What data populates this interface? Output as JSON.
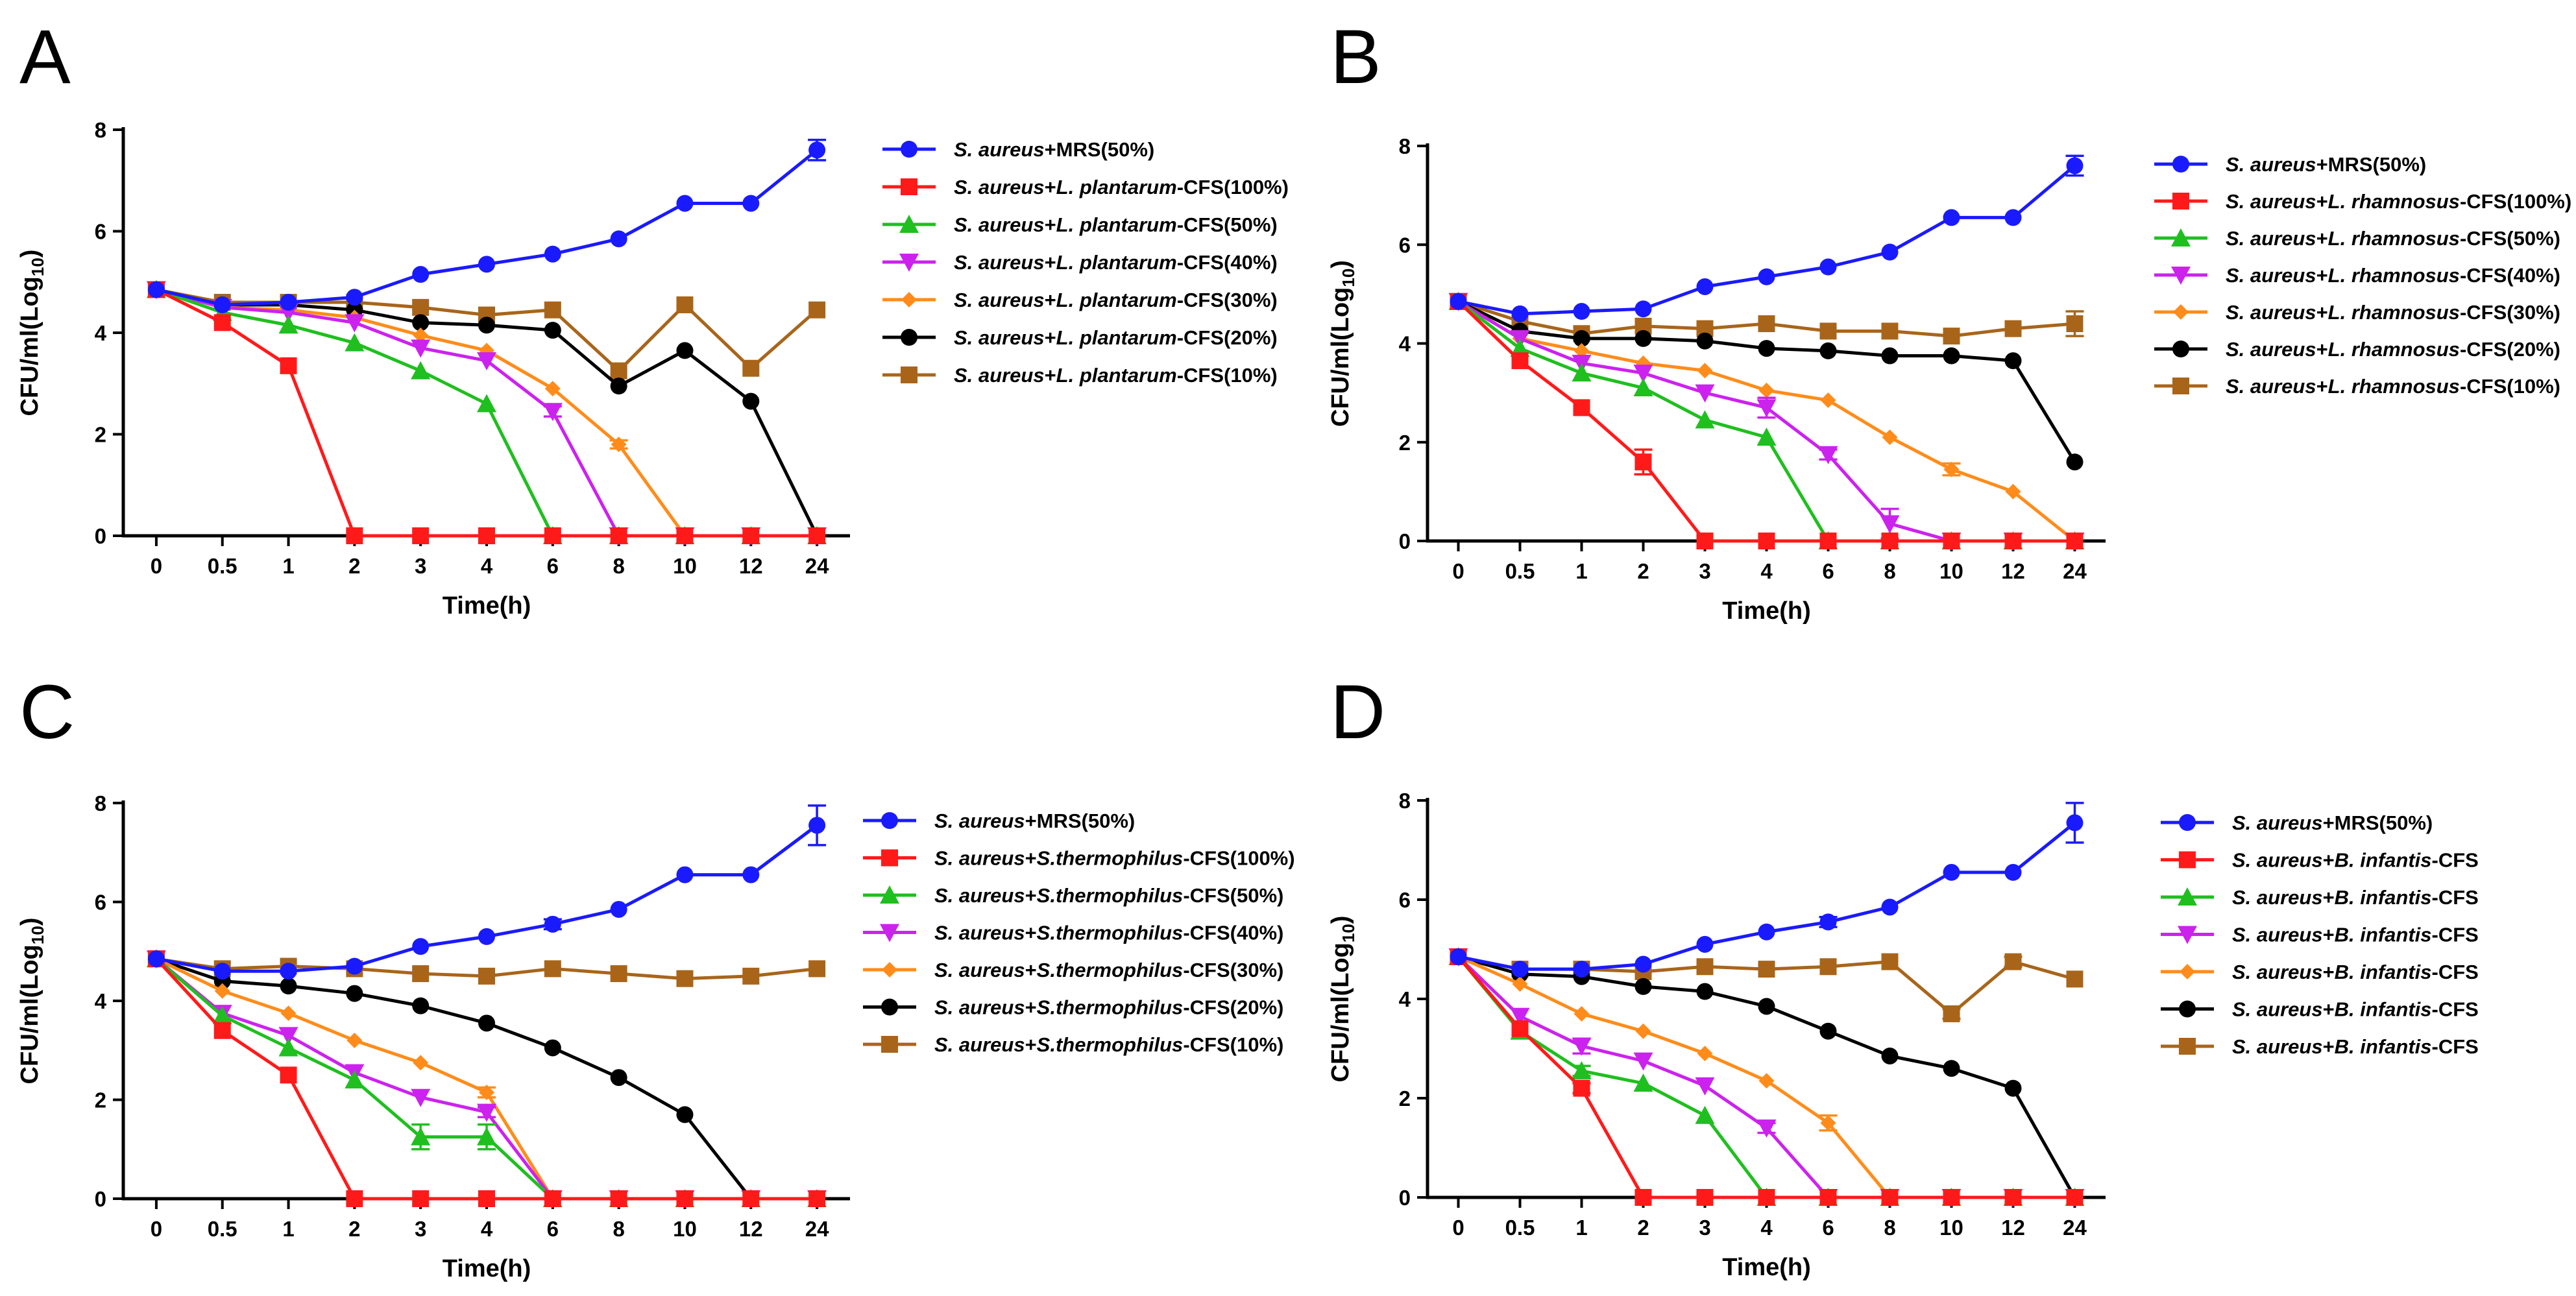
{
  "figure": {
    "colors": {
      "mrs": "#1a1aff",
      "c100": "#ff1a1a",
      "c50": "#1fbf1f",
      "c40": "#cc22ee",
      "c30": "#ff8c1a",
      "c20": "#000000",
      "c10": "#a8651a"
    },
    "markers": [
      "circle",
      "square",
      "triangle-up",
      "triangle-down",
      "diamond",
      "circle",
      "square"
    ]
  },
  "chart_data": [
    {
      "panel": "A",
      "type": "line",
      "ylabel_main": "CFU/ml(Log",
      "ylabel_sub": "10",
      "ylabel_end": ")",
      "xlabel": "Time(h)",
      "categories": [
        "0",
        "0.5",
        "1",
        "2",
        "3",
        "4",
        "6",
        "8",
        "10",
        "12",
        "24"
      ],
      "ylim": [
        0,
        8
      ],
      "yticks": [
        "0",
        "2",
        "4",
        "6",
        "8"
      ],
      "series": [
        {
          "species": "S. aureus",
          "mid": "+MRS(50%)",
          "strain": "",
          "suffix": "",
          "values": [
            4.85,
            4.55,
            4.6,
            4.7,
            5.15,
            5.35,
            5.55,
            5.85,
            6.55,
            6.55,
            7.6
          ],
          "errors": [
            0.05,
            0.05,
            0.05,
            0.05,
            0.05,
            0.05,
            0.05,
            0.05,
            0.05,
            0.05,
            0.2
          ]
        },
        {
          "species": "S. aureus",
          "mid": "+",
          "strain": "L. plantarum",
          "suffix": "-CFS(100%)",
          "values": [
            4.85,
            4.2,
            3.35,
            0,
            0,
            0,
            0,
            0,
            0,
            0,
            0
          ],
          "errors": [
            0.05,
            0.05,
            0.05,
            0,
            0,
            0,
            0,
            0,
            0,
            0,
            0
          ]
        },
        {
          "species": "S. aureus",
          "mid": "+",
          "strain": "L. plantarum",
          "suffix": "-CFS(50%)",
          "values": [
            4.85,
            4.4,
            4.15,
            3.8,
            3.25,
            2.6,
            0,
            0,
            0,
            0,
            0
          ],
          "errors": [
            0.05,
            0.05,
            0.05,
            0.05,
            0.05,
            0.05,
            0,
            0,
            0,
            0,
            0
          ]
        },
        {
          "species": "S. aureus",
          "mid": "+",
          "strain": "L. plantarum",
          "suffix": "-CFS(40%)",
          "values": [
            4.85,
            4.5,
            4.4,
            4.2,
            3.7,
            3.45,
            2.45,
            0,
            0,
            0,
            0
          ],
          "errors": [
            0.05,
            0.05,
            0.05,
            0.05,
            0.05,
            0.05,
            0.1,
            0,
            0,
            0,
            0
          ]
        },
        {
          "species": "S. aureus",
          "mid": "+",
          "strain": "L. plantarum",
          "suffix": "-CFS(30%)",
          "values": [
            4.85,
            4.5,
            4.45,
            4.3,
            3.95,
            3.65,
            2.9,
            1.8,
            0,
            0,
            0
          ],
          "errors": [
            0.05,
            0.05,
            0.05,
            0.05,
            0.05,
            0.05,
            0.05,
            0.08,
            0,
            0,
            0
          ]
        },
        {
          "species": "S. aureus",
          "mid": "+",
          "strain": "L. plantarum",
          "suffix": "-CFS(20%)",
          "values": [
            4.85,
            4.55,
            4.55,
            4.45,
            4.2,
            4.15,
            4.05,
            2.95,
            3.65,
            2.65,
            0
          ],
          "errors": [
            0.05,
            0.05,
            0.05,
            0.05,
            0.05,
            0.05,
            0.05,
            0.05,
            0.05,
            0.05,
            0
          ]
        },
        {
          "species": "S. aureus",
          "mid": "+",
          "strain": "L. plantarum",
          "suffix": "-CFS(10%)",
          "values": [
            4.85,
            4.6,
            4.6,
            4.6,
            4.5,
            4.35,
            4.45,
            3.25,
            4.55,
            3.3,
            4.45
          ],
          "errors": [
            0.05,
            0.05,
            0.05,
            0.05,
            0.05,
            0.05,
            0.05,
            0.05,
            0.05,
            0.05,
            0.05
          ]
        }
      ]
    },
    {
      "panel": "B",
      "type": "line",
      "ylabel_main": "CFU/ml(Log",
      "ylabel_sub": "10",
      "ylabel_end": ")",
      "xlabel": "Time(h)",
      "categories": [
        "0",
        "0.5",
        "1",
        "2",
        "3",
        "4",
        "6",
        "8",
        "10",
        "12",
        "24"
      ],
      "ylim": [
        0,
        8
      ],
      "yticks": [
        "0",
        "2",
        "4",
        "6",
        "8"
      ],
      "series": [
        {
          "species": "S. aureus",
          "mid": "+MRS(50%)",
          "strain": "",
          "suffix": "",
          "values": [
            4.85,
            4.6,
            4.65,
            4.7,
            5.15,
            5.35,
            5.55,
            5.85,
            6.55,
            6.55,
            7.6
          ],
          "errors": [
            0.05,
            0.05,
            0.05,
            0.05,
            0.05,
            0.05,
            0.05,
            0.05,
            0.05,
            0.05,
            0.2
          ]
        },
        {
          "species": "S. aureus",
          "mid": "+",
          "strain": "L. rhamnosus",
          "suffix": "-CFS(100%)",
          "values": [
            4.85,
            3.65,
            2.7,
            1.6,
            0,
            0,
            0,
            0,
            0,
            0,
            0
          ],
          "errors": [
            0.05,
            0.05,
            0.05,
            0.25,
            0,
            0,
            0,
            0,
            0,
            0,
            0
          ]
        },
        {
          "species": "S. aureus",
          "mid": "+",
          "strain": "L. rhamnosus",
          "suffix": "-CFS(50%)",
          "values": [
            4.85,
            3.9,
            3.4,
            3.1,
            2.45,
            2.1,
            0,
            0,
            0,
            0,
            0
          ],
          "errors": [
            0.05,
            0.05,
            0.05,
            0.05,
            0.05,
            0.05,
            0,
            0,
            0,
            0,
            0
          ]
        },
        {
          "species": "S. aureus",
          "mid": "+",
          "strain": "L. rhamnosus",
          "suffix": "-CFS(40%)",
          "values": [
            4.85,
            4.1,
            3.6,
            3.4,
            3.0,
            2.7,
            1.75,
            0.35,
            0,
            0,
            0
          ],
          "errors": [
            0.05,
            0.05,
            0.05,
            0.05,
            0.05,
            0.2,
            0.1,
            0.3,
            0,
            0,
            0
          ]
        },
        {
          "species": "S. aureus",
          "mid": "+",
          "strain": "L. rhamnosus",
          "suffix": "-CFS(30%)",
          "values": [
            4.85,
            4.1,
            3.85,
            3.6,
            3.45,
            3.05,
            2.85,
            2.1,
            1.45,
            1.0,
            0
          ],
          "errors": [
            0.05,
            0.05,
            0.05,
            0.05,
            0.05,
            0.05,
            0.05,
            0.05,
            0.12,
            0.05,
            0
          ]
        },
        {
          "species": "S. aureus",
          "mid": "+",
          "strain": "L. rhamnosus",
          "suffix": "-CFS(20%)",
          "values": [
            4.85,
            4.25,
            4.1,
            4.1,
            4.05,
            3.9,
            3.85,
            3.75,
            3.75,
            3.65,
            1.6
          ],
          "errors": [
            0.05,
            0.05,
            0.05,
            0.05,
            0.05,
            0.05,
            0.05,
            0.05,
            0.05,
            0.05,
            0.05
          ]
        },
        {
          "species": "S. aureus",
          "mid": "+",
          "strain": "L. rhamnosus",
          "suffix": "-CFS(10%)",
          "values": [
            4.85,
            4.45,
            4.2,
            4.35,
            4.3,
            4.4,
            4.25,
            4.25,
            4.15,
            4.3,
            4.4
          ],
          "errors": [
            0.05,
            0.05,
            0.05,
            0.05,
            0.05,
            0.05,
            0.05,
            0.05,
            0.05,
            0.05,
            0.25
          ]
        }
      ]
    },
    {
      "panel": "C",
      "type": "line",
      "ylabel_main": "CFU/ml(Log",
      "ylabel_sub": "10",
      "ylabel_end": ")",
      "xlabel": "Time(h)",
      "categories": [
        "0",
        "0.5",
        "1",
        "2",
        "3",
        "4",
        "6",
        "8",
        "10",
        "12",
        "24"
      ],
      "ylim": [
        0,
        8
      ],
      "yticks": [
        "0",
        "2",
        "4",
        "6",
        "8"
      ],
      "series": [
        {
          "species": "S. aureus",
          "mid": "+MRS(50%)",
          "strain": "",
          "suffix": "",
          "values": [
            4.85,
            4.6,
            4.6,
            4.7,
            5.1,
            5.3,
            5.55,
            5.85,
            6.55,
            6.55,
            7.55
          ],
          "errors": [
            0.05,
            0.05,
            0.05,
            0.05,
            0.05,
            0.05,
            0.1,
            0.05,
            0.05,
            0.05,
            0.4
          ]
        },
        {
          "species": "S. aureus",
          "mid": "+",
          "strain": "S.thermophilus",
          "suffix": "-CFS(100%)",
          "values": [
            4.85,
            3.4,
            2.5,
            0,
            0,
            0,
            0,
            0,
            0,
            0,
            0
          ],
          "errors": [
            0.05,
            0.05,
            0.05,
            0,
            0,
            0,
            0,
            0,
            0,
            0,
            0
          ]
        },
        {
          "species": "S. aureus",
          "mid": "+",
          "strain": "S.thermophilus",
          "suffix": "-CFS(50%)",
          "values": [
            4.85,
            3.7,
            3.05,
            2.4,
            1.25,
            1.25,
            0,
            0,
            0,
            0,
            0
          ],
          "errors": [
            0.05,
            0.05,
            0.05,
            0.05,
            0.25,
            0.25,
            0,
            0,
            0,
            0,
            0
          ]
        },
        {
          "species": "S. aureus",
          "mid": "+",
          "strain": "S.thermophilus",
          "suffix": "-CFS(40%)",
          "values": [
            4.85,
            3.75,
            3.3,
            2.55,
            2.05,
            1.75,
            0,
            0,
            0,
            0,
            0
          ],
          "errors": [
            0.05,
            0.05,
            0.05,
            0.05,
            0.05,
            0.1,
            0,
            0,
            0,
            0,
            0
          ]
        },
        {
          "species": "S. aureus",
          "mid": "+",
          "strain": "S.thermophilus",
          "suffix": "-CFS(30%)",
          "values": [
            4.85,
            4.2,
            3.75,
            3.2,
            2.75,
            2.15,
            0,
            0,
            0,
            0,
            0
          ],
          "errors": [
            0.05,
            0.05,
            0.05,
            0.05,
            0.05,
            0.1,
            0,
            0,
            0,
            0,
            0
          ]
        },
        {
          "species": "S. aureus",
          "mid": "+",
          "strain": "S.thermophilus",
          "suffix": "-CFS(20%)",
          "values": [
            4.85,
            4.4,
            4.3,
            4.15,
            3.9,
            3.55,
            3.05,
            2.45,
            1.7,
            0,
            0
          ],
          "errors": [
            0.05,
            0.05,
            0.05,
            0.05,
            0.05,
            0.05,
            0.05,
            0.05,
            0.05,
            0,
            0
          ]
        },
        {
          "species": "S. aureus",
          "mid": "+",
          "strain": "S.thermophilus",
          "suffix": "-CFS(10%)",
          "values": [
            4.85,
            4.65,
            4.7,
            4.65,
            4.55,
            4.5,
            4.65,
            4.55,
            4.45,
            4.5,
            4.65
          ],
          "errors": [
            0.05,
            0.05,
            0.05,
            0.05,
            0.05,
            0.05,
            0.05,
            0.05,
            0.05,
            0.05,
            0.05
          ]
        }
      ]
    },
    {
      "panel": "D",
      "type": "line",
      "ylabel_main": "CFU/ml(Log",
      "ylabel_sub": "10",
      "ylabel_end": ")",
      "xlabel": "Time(h)",
      "categories": [
        "0",
        "0.5",
        "1",
        "2",
        "3",
        "4",
        "6",
        "8",
        "10",
        "12",
        "24"
      ],
      "ylim": [
        0,
        8
      ],
      "yticks": [
        "0",
        "2",
        "4",
        "6",
        "8"
      ],
      "series": [
        {
          "species": "S. aureus",
          "mid": "+",
          "strain": "",
          "suffix": "MRS(50%)",
          "values": [
            4.85,
            4.6,
            4.6,
            4.7,
            5.1,
            5.35,
            5.55,
            5.85,
            6.55,
            6.55,
            7.55
          ],
          "errors": [
            0.05,
            0.05,
            0.05,
            0.05,
            0.05,
            0.05,
            0.1,
            0.05,
            0.05,
            0.05,
            0.4
          ]
        },
        {
          "species": "S. aureus",
          "mid": "+",
          "strain": "B. infantis",
          "suffix": "-CFS",
          "values": [
            4.85,
            3.4,
            2.2,
            0,
            0,
            0,
            0,
            0,
            0,
            0,
            0
          ],
          "errors": [
            0.05,
            0.05,
            0.1,
            0,
            0,
            0,
            0,
            0,
            0,
            0,
            0
          ]
        },
        {
          "species": "S. aureus",
          "mid": "+",
          "strain": "B. infantis",
          "suffix": "-CFS",
          "values": [
            4.85,
            3.35,
            2.55,
            2.3,
            1.65,
            0,
            0,
            0,
            0,
            0,
            0
          ],
          "errors": [
            0.05,
            0.05,
            0.1,
            0.05,
            0.05,
            0,
            0,
            0,
            0,
            0,
            0
          ]
        },
        {
          "species": "S. aureus",
          "mid": "+",
          "strain": "B. infantis",
          "suffix": "-CFS",
          "values": [
            4.85,
            3.65,
            3.05,
            2.75,
            2.25,
            1.4,
            0,
            0,
            0,
            0,
            0
          ],
          "errors": [
            0.05,
            0.05,
            0.15,
            0.05,
            0.05,
            0.1,
            0,
            0,
            0,
            0,
            0
          ]
        },
        {
          "species": "S. aureus",
          "mid": "+",
          "strain": "B. infantis",
          "suffix": "-CFS",
          "values": [
            4.85,
            4.3,
            3.7,
            3.35,
            2.9,
            2.35,
            1.5,
            0,
            0,
            0,
            0
          ],
          "errors": [
            0.05,
            0.05,
            0.05,
            0.05,
            0.05,
            0.05,
            0.15,
            0,
            0,
            0,
            0
          ]
        },
        {
          "species": "S. aureus",
          "mid": "+",
          "strain": "B. infantis",
          "suffix": "-CFS",
          "values": [
            4.85,
            4.5,
            4.45,
            4.25,
            4.15,
            3.85,
            3.35,
            2.85,
            2.6,
            2.2,
            0
          ],
          "errors": [
            0.05,
            0.05,
            0.05,
            0.05,
            0.05,
            0.05,
            0.05,
            0.05,
            0.05,
            0.05,
            0
          ]
        },
        {
          "species": "S. aureus",
          "mid": "+",
          "strain": "B. infantis",
          "suffix": "-CFS",
          "values": [
            4.85,
            4.6,
            4.6,
            4.55,
            4.65,
            4.6,
            4.65,
            4.75,
            3.7,
            4.75,
            4.4
          ],
          "errors": [
            0.05,
            0.05,
            0.05,
            0.05,
            0.05,
            0.05,
            0.05,
            0.05,
            0.1,
            0.1,
            0.05
          ]
        }
      ]
    }
  ]
}
